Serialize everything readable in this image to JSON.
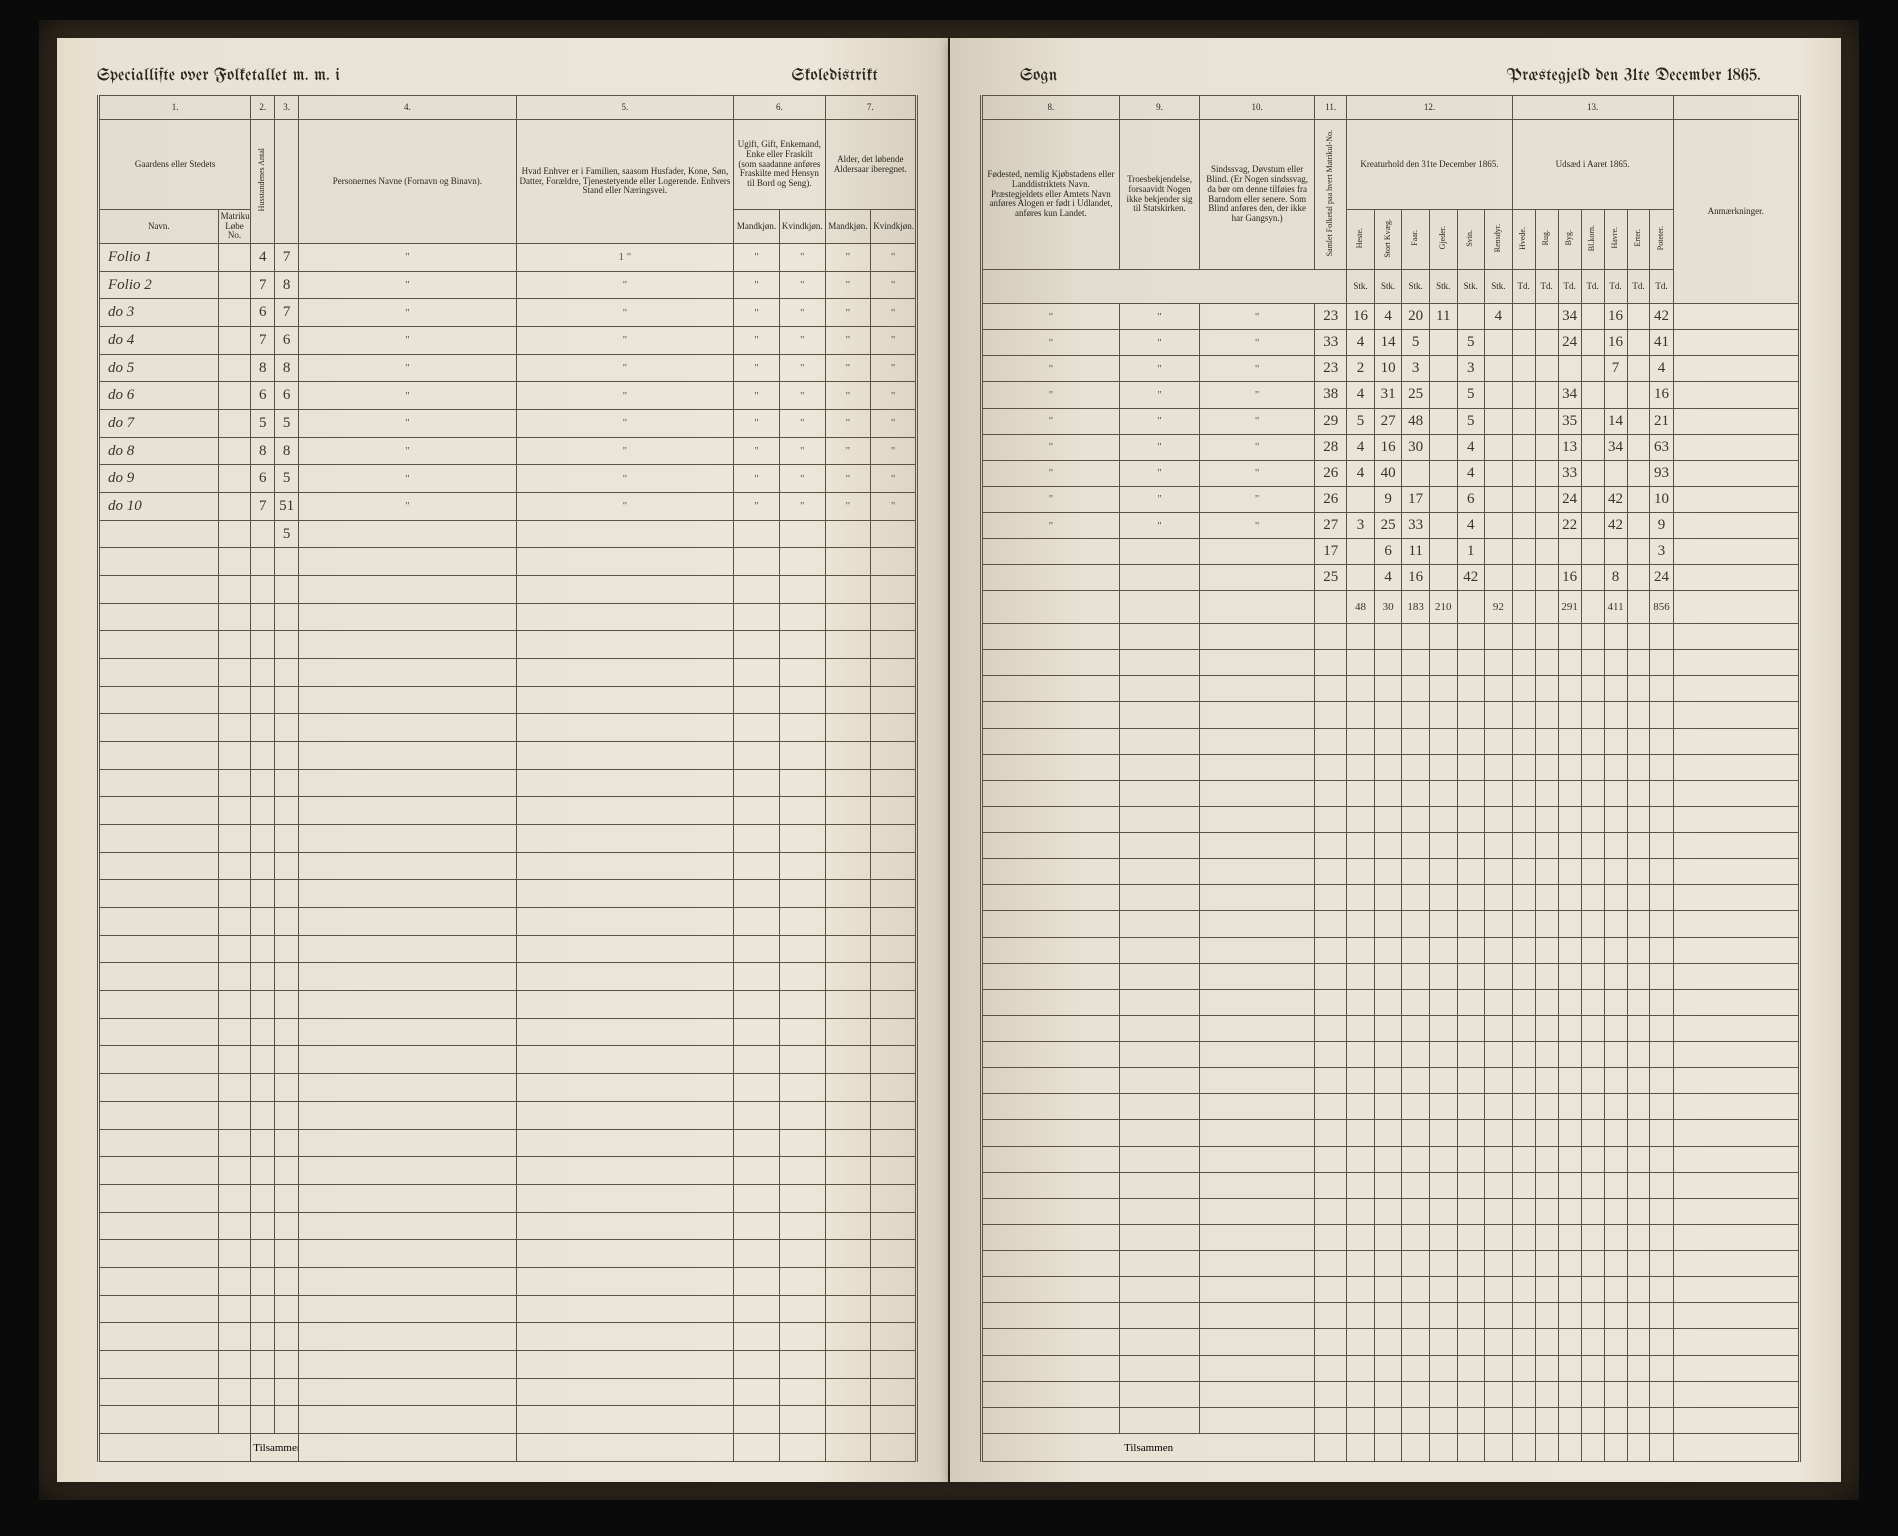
{
  "header": {
    "left_page_left": "Speciallifte over Folketallet m. m. i",
    "left_page_right": "Skoledistrikt",
    "right_page_left": "Sogn",
    "right_page_right": "Præstegjeld den 31te December 1865."
  },
  "left_columns": {
    "c1": "1.",
    "c2": "2.",
    "c3": "3.",
    "c4": "4.",
    "c5": "5.",
    "c6": "6.",
    "c7": "7.",
    "h1a": "Gaardens eller Stedets",
    "h1b": "Navn.",
    "h1c": "Matrikul Løbe No.",
    "h2": "Husstandenes Antal",
    "h3": "",
    "h4": "Personernes Navne (Fornavn og Binavn).",
    "h5": "Hvad Enhver er i Familien, saasom Husfader, Kone, Søn, Datter, Forældre, Tjenestetyende eller Logerende. Enhvers Stand eller Næringsvei.",
    "h6a": "Ugift, Gift, Enkemand, Enke eller Fraskilt (som saadanne anføres Fraskilte med Hensyn til Bord og Seng).",
    "h7a": "Alder, det løbende Aldersaar iberegnet.",
    "h6b": "Mandkjøn.",
    "h6c": "Kvindkjøn."
  },
  "right_columns": {
    "c8": "8.",
    "c9": "9.",
    "c10": "10.",
    "c11": "11.",
    "c12": "12.",
    "c13": "13.",
    "h8": "Fødested, nemlig Kjøbstadens eller Landdistriktets Navn. Præstegjeldets eller Amtets Navn anføres Alogen er født i Udlandet, anføres kun Landet.",
    "h9": "Troesbekjendelse, forsaavidt Nogen ikke bekjender sig til Statskirken.",
    "h10": "Sindssvag, Døvstum eller Blind. (Er Nogen sindssvag, da bør om denne tilføies fra Barndom eller senere. Som Blind anføres den, der ikke har Gangsyn.)",
    "h11": "Samlet Folketal paa hvert Matrikul-No.",
    "h12": "Kreaturhold den 31te December 1865.",
    "h12_sub": [
      "Heste.",
      "Stort Kvæg.",
      "Faar.",
      "Gjeder.",
      "Svin.",
      "Rensdyr."
    ],
    "h12_stk": "Stk.",
    "h13": "Udsæd i Aaret 1865.",
    "h13_sub": [
      "Hvede.",
      "Rug.",
      "Byg.",
      "Bl.korn.",
      "Havre.",
      "Erter.",
      "Poteter."
    ],
    "h13_td": "Td.",
    "h_anm": "Anmærkninger."
  },
  "rows": [
    {
      "name": "Folio 1",
      "mno": "",
      "c2": "4",
      "c3": "7",
      "c4": "\"",
      "c5": "1  \"",
      "c6": "\"",
      "c7": "\"",
      "c8": "\"",
      "c9": "\"",
      "c10": "\"",
      "c11": "23",
      "k": [
        "16",
        "4",
        "20",
        "11",
        "",
        "4"
      ],
      "u": [
        "",
        "",
        "34",
        "",
        "16",
        "",
        "42"
      ]
    },
    {
      "name": "Folio 2",
      "mno": "",
      "c2": "7",
      "c3": "8",
      "c4": "\"",
      "c5": "\"",
      "c6": "\"",
      "c7": "\"",
      "c8": "\"",
      "c9": "\"",
      "c10": "\"",
      "c11": "33",
      "k": [
        "4",
        "14",
        "5",
        "",
        "5",
        ""
      ],
      "u": [
        "",
        "",
        "24",
        "",
        "16",
        "",
        "41"
      ]
    },
    {
      "name": "do   3",
      "mno": "",
      "c2": "6",
      "c3": "7",
      "c4": "\"",
      "c5": "\"",
      "c6": "\"",
      "c7": "\"",
      "c8": "\"",
      "c9": "\"",
      "c10": "\"",
      "c11": "23",
      "k": [
        "2",
        "10",
        "3",
        "",
        "3",
        ""
      ],
      "u": [
        "",
        "",
        "",
        "",
        "7",
        "",
        "4"
      ]
    },
    {
      "name": "do   4",
      "mno": "",
      "c2": "7",
      "c3": "6",
      "c4": "\"",
      "c5": "\"",
      "c6": "\"",
      "c7": "\"",
      "c8": "\"",
      "c9": "\"",
      "c10": "\"",
      "c11": "38",
      "k": [
        "4",
        "31",
        "25",
        "",
        "5",
        ""
      ],
      "u": [
        "",
        "",
        "34",
        "",
        "",
        "",
        "16"
      ]
    },
    {
      "name": "do   5",
      "mno": "",
      "c2": "8",
      "c3": "8",
      "c4": "\"",
      "c5": "\"",
      "c6": "\"",
      "c7": "\"",
      "c8": "\"",
      "c9": "\"",
      "c10": "\"",
      "c11": "29",
      "k": [
        "5",
        "27",
        "48",
        "",
        "5",
        ""
      ],
      "u": [
        "",
        "",
        "35",
        "",
        "14",
        "",
        "21"
      ]
    },
    {
      "name": "do   6",
      "mno": "",
      "c2": "6",
      "c3": "6",
      "c4": "\"",
      "c5": "\"",
      "c6": "\"",
      "c7": "\"",
      "c8": "\"",
      "c9": "\"",
      "c10": "\"",
      "c11": "28",
      "k": [
        "4",
        "16",
        "30",
        "",
        "4",
        ""
      ],
      "u": [
        "",
        "",
        "13",
        "",
        "34",
        "",
        "63"
      ]
    },
    {
      "name": "do   7",
      "mno": "",
      "c2": "5",
      "c3": "5",
      "c4": "\"",
      "c5": "\"",
      "c6": "\"",
      "c7": "\"",
      "c8": "\"",
      "c9": "\"",
      "c10": "\"",
      "c11": "26",
      "k": [
        "4",
        "40",
        "",
        "",
        "4",
        ""
      ],
      "u": [
        "",
        "",
        "33",
        "",
        "",
        "",
        "93"
      ]
    },
    {
      "name": "do   8",
      "mno": "",
      "c2": "8",
      "c3": "8",
      "c4": "\"",
      "c5": "\"",
      "c6": "\"",
      "c7": "\"",
      "c8": "\"",
      "c9": "\"",
      "c10": "\"",
      "c11": "26",
      "k": [
        "",
        "9",
        "17",
        "",
        "6",
        ""
      ],
      "u": [
        "",
        "",
        "24",
        "",
        "42",
        "",
        "10"
      ]
    },
    {
      "name": "do   9",
      "mno": "",
      "c2": "6",
      "c3": "5",
      "c4": "\"",
      "c5": "\"",
      "c6": "\"",
      "c7": "\"",
      "c8": "\"",
      "c9": "\"",
      "c10": "\"",
      "c11": "27",
      "k": [
        "3",
        "25",
        "33",
        "",
        "4",
        ""
      ],
      "u": [
        "",
        "",
        "22",
        "",
        "42",
        "",
        "9"
      ]
    },
    {
      "name": "do  10",
      "mno": "",
      "c2": "7",
      "c3": "51",
      "c4": "\"",
      "c5": "\"",
      "c6": "\"",
      "c7": "\"",
      "c8": "",
      "c9": "",
      "c10": "",
      "c11": "17",
      "k": [
        "",
        "6",
        "11",
        "",
        "1",
        ""
      ],
      "u": [
        "",
        "",
        "",
        "",
        "",
        "",
        "3"
      ]
    },
    {
      "name": "",
      "mno": "",
      "c2": "",
      "c3": "5",
      "c4": "",
      "c5": "",
      "c6": "",
      "c7": "",
      "c8": "",
      "c9": "",
      "c10": "",
      "c11": "25",
      "k": [
        "",
        "4",
        "16",
        "",
        "42",
        ""
      ],
      "u": [
        "",
        "",
        "16",
        "",
        "8",
        "",
        "24"
      ]
    }
  ],
  "sum_row": {
    "c11": "",
    "k": [
      "48",
      "30",
      "183",
      "210",
      "",
      "92"
    ],
    "u": [
      "",
      "",
      "291",
      "",
      "411",
      "",
      "856"
    ]
  },
  "footer": "Tilsammen",
  "n_empty_rows": 32,
  "colors": {
    "paper": "#e8e2d4",
    "ink": "#2a261c",
    "rule": "#5a5242",
    "handwriting": "#3a3428",
    "binding": "#3a3024"
  }
}
